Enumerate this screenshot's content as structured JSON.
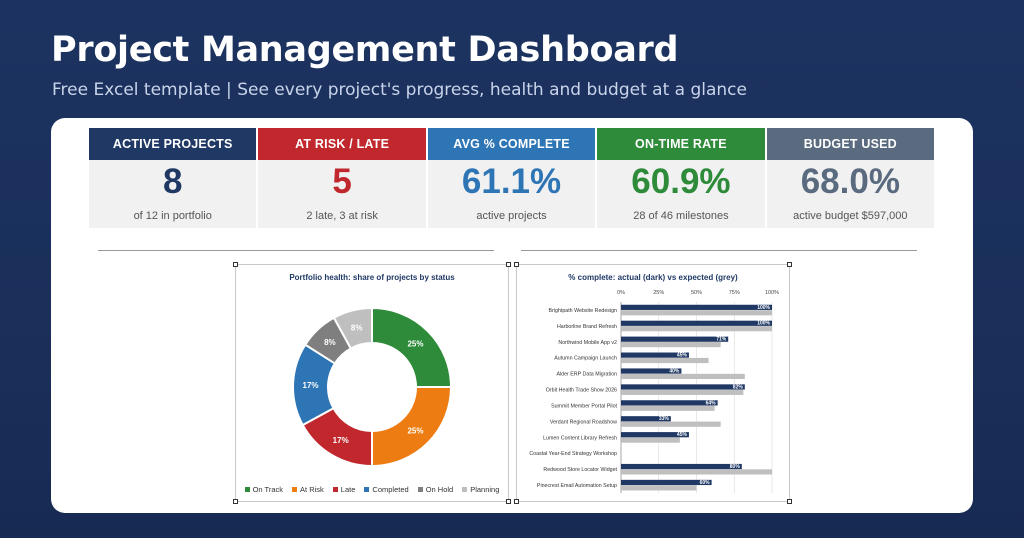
{
  "header": {
    "title": "Project Management Dashboard",
    "subtitle": "Free Excel template  |  See every project's progress, health and budget at a glance"
  },
  "kpis": [
    {
      "label": "ACTIVE PROJECTS",
      "value": "8",
      "sub": "of 12 in portfolio",
      "head_color": "#1f3864",
      "value_color": "#1f3864"
    },
    {
      "label": "AT RISK / LATE",
      "value": "5",
      "sub": "2 late, 3 at risk",
      "head_color": "#c0282d",
      "value_color": "#c0282d"
    },
    {
      "label": "AVG % COMPLETE",
      "value": "61.1%",
      "sub": "active projects",
      "head_color": "#2e75b6",
      "value_color": "#2e75b6"
    },
    {
      "label": "ON-TIME RATE",
      "value": "60.9%",
      "sub": "28 of 46 milestones",
      "head_color": "#2e8b3a",
      "value_color": "#2e8b3a"
    },
    {
      "label": "BUDGET USED",
      "value": "68.0%",
      "sub": "active budget $597,000",
      "head_color": "#5a6b80",
      "value_color": "#5a6b80"
    }
  ],
  "chart_data": [
    {
      "type": "pie",
      "title": "Portfolio health: share of projects by status",
      "categories": [
        "On Track",
        "At Risk",
        "Late",
        "Completed",
        "On Hold",
        "Planning"
      ],
      "values": [
        25,
        25,
        17,
        17,
        8,
        8
      ],
      "labels": [
        "25%",
        "25%",
        "17%",
        "17%",
        "8%",
        "8%"
      ],
      "colors": [
        "#2e8b3a",
        "#ed7d12",
        "#c0282d",
        "#2e75b6",
        "#7f7f7f",
        "#bfbfbf"
      ],
      "legend": "bottom"
    },
    {
      "type": "bar",
      "orientation": "horizontal",
      "title": "% complete: actual (dark) vs expected (grey)",
      "categories": [
        "Brightpath Website Redesign",
        "Harborline Brand Refresh",
        "Northwind Mobile App v2",
        "Autumn Campaign Launch",
        "Alder ERP Data Migration",
        "Orbit Health Trade Show 2026",
        "Summit Member Portal Pilot",
        "Verdant Regional Roadshow",
        "Lumen Content Library Refresh",
        "Coastal Year-End Strategy Workshop",
        "Redwood Store Locator Widget",
        "Pinecrest Email Automation Setup"
      ],
      "series": [
        {
          "values": [
            100,
            100,
            71,
            45,
            40,
            82,
            64,
            33,
            45,
            0,
            80,
            60
          ],
          "color": "#1f3864"
        },
        {
          "values": [
            100,
            100,
            66,
            58,
            82,
            81,
            62,
            66,
            39,
            0,
            100,
            50
          ],
          "color": "#bfbfbf"
        }
      ],
      "data_labels": [
        "100%",
        "100%",
        "71%",
        "45%",
        "40%",
        "82%",
        "64%",
        "33%",
        "45%",
        "",
        "80%",
        "60%"
      ],
      "xticks": [
        "0%",
        "25%",
        "50%",
        "75%",
        "100%"
      ],
      "xlim": [
        0,
        100
      ],
      "xaxis_position": "top"
    }
  ]
}
